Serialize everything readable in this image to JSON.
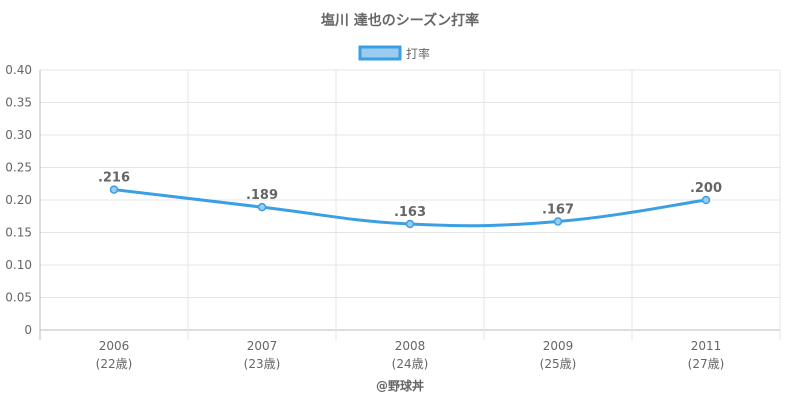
{
  "chart_data": {
    "type": "line",
    "title": "塩川 達也のシーズン打率",
    "categories": [
      "2006",
      "2007",
      "2008",
      "2009",
      "2011"
    ],
    "sublabels": [
      "(22歳)",
      "(23歳)",
      "(24歳)",
      "(25歳)",
      "(27歳)"
    ],
    "series": [
      {
        "name": "打率",
        "values": [
          0.216,
          0.189,
          0.163,
          0.167,
          0.2
        ],
        "labels": [
          ".216",
          ".189",
          ".163",
          ".167",
          ".200"
        ]
      }
    ],
    "ylim": [
      0,
      0.4
    ],
    "yticks": [
      "0",
      "0.05",
      "0.10",
      "0.15",
      "0.20",
      "0.25",
      "0.30",
      "0.35",
      "0.40"
    ],
    "grid": true,
    "legend_position": "top",
    "colors": {
      "line": "#3b9fe3",
      "fill": "#9ccbf0",
      "grid": "#e5e5e5",
      "axis": "#bbbbbb"
    }
  },
  "credit": "@野球丼"
}
